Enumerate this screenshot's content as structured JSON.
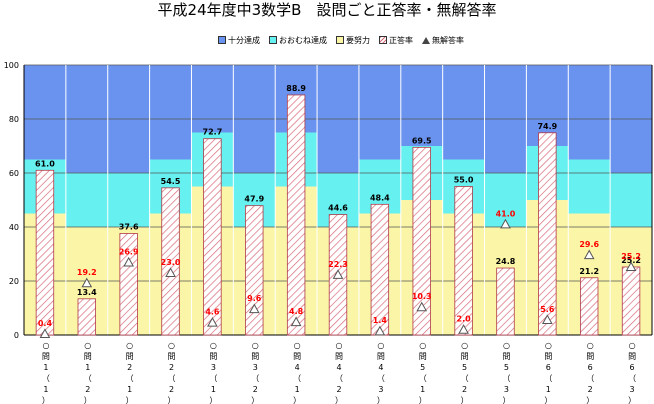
{
  "chart_data": {
    "type": "bar",
    "title": "平成24年度中3数学B　設問ごと正答率・無解答率",
    "ylim": [
      0,
      100
    ],
    "yticks": [
      0,
      20,
      40,
      60,
      80,
      100
    ],
    "categories": [
      "○問1（1）",
      "○問1（2）",
      "○問2（1）",
      "○問2（2）",
      "○問3（1）",
      "○問3（2）",
      "○問4（1）",
      "○問4（2）",
      "○問4（3）",
      "○問5（1）",
      "○問5（2）",
      "○問5（3）",
      "○問6（1）",
      "○問6（2）",
      "○問6（3）"
    ],
    "category_labels": [
      [
        "○",
        "問",
        "1",
        "（",
        "1",
        "）"
      ],
      [
        "○",
        "問",
        "1",
        "（",
        "2",
        "）"
      ],
      [
        "○",
        "問",
        "2",
        "（",
        "1",
        "）"
      ],
      [
        "○",
        "問",
        "2",
        "（",
        "2",
        "）"
      ],
      [
        "○",
        "問",
        "3",
        "（",
        "1",
        "）"
      ],
      [
        "○",
        "問",
        "3",
        "（",
        "2",
        "）"
      ],
      [
        "○",
        "問",
        "4",
        "（",
        "1",
        "）"
      ],
      [
        "○",
        "問",
        "4",
        "（",
        "2",
        "）"
      ],
      [
        "○",
        "問",
        "4",
        "（",
        "3",
        "）"
      ],
      [
        "○",
        "問",
        "5",
        "（",
        "1",
        "）"
      ],
      [
        "○",
        "問",
        "5",
        "（",
        "2",
        "）"
      ],
      [
        "○",
        "問",
        "5",
        "（",
        "3",
        "）"
      ],
      [
        "○",
        "問",
        "6",
        "（",
        "1",
        "）"
      ],
      [
        "○",
        "問",
        "6",
        "（",
        "2",
        "）"
      ],
      [
        "○",
        "問",
        "6",
        "（",
        "3",
        "）"
      ]
    ],
    "legend": {
      "band_high": "十分達成",
      "band_mid": "おおむね達成",
      "band_low": "要努力",
      "correct": "正答率",
      "noanswer": "無解答率"
    },
    "bands": {
      "low_upper": [
        45,
        40,
        40,
        45,
        55,
        40,
        55,
        40,
        45,
        50,
        45,
        40,
        50,
        45,
        40
      ],
      "mid_upper": [
        65,
        60,
        60,
        65,
        75,
        60,
        75,
        60,
        65,
        70,
        65,
        60,
        70,
        65,
        60
      ]
    },
    "correct_rate": [
      61.0,
      13.4,
      37.6,
      54.5,
      72.7,
      47.9,
      88.9,
      44.6,
      48.4,
      69.5,
      55.0,
      24.8,
      74.9,
      21.2,
      25.2
    ],
    "correct_labels": [
      "61.0",
      "13.4",
      "37.6",
      "54.5",
      "72.7",
      "47.9",
      "88.9",
      "44.6",
      "48.4",
      "69.5",
      "55.0",
      "24.8",
      "74.9",
      "21.2",
      "25.2"
    ],
    "noanswer_rate": [
      0.4,
      19.2,
      26.9,
      23.0,
      4.6,
      9.6,
      4.8,
      22.3,
      1.4,
      10.3,
      2.0,
      41.0,
      5.6,
      29.6,
      25.2
    ],
    "noanswer_labels": [
      "0.4",
      "19.2",
      "26.9",
      "23.0",
      "4.6",
      "9.6",
      "4.8",
      "22.3",
      "1.4",
      "10.3",
      "2.0",
      "41.0",
      "5.6",
      "29.6",
      "25.2"
    ],
    "colors": {
      "band_high": "#6a93f0",
      "band_mid": "#66f0f0",
      "band_low": "#fbf5a8",
      "correct_hatch": "#d86a78",
      "noanswer_label": "#ff0000",
      "marker": "#555555",
      "grid": "#555555"
    }
  }
}
